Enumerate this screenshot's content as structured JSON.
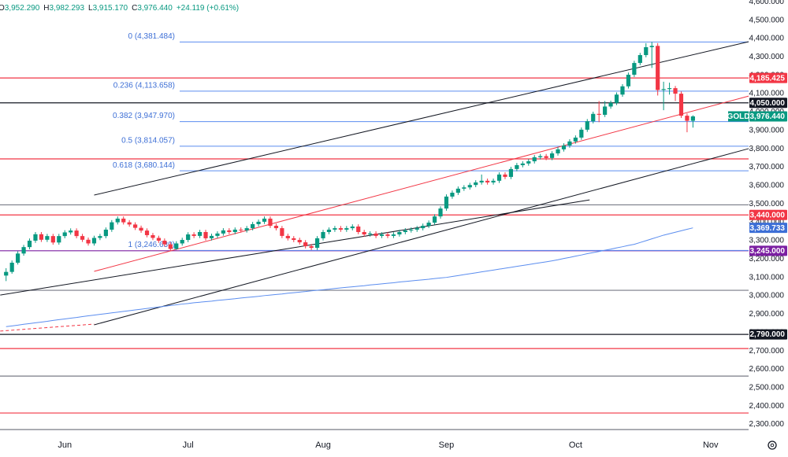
{
  "chart_data": {
    "type": "candlestick",
    "header": [
      {
        "key": "O",
        "text": "3,952.290"
      },
      {
        "key": "H",
        "text": "3,982.293"
      },
      {
        "key": "L",
        "text": "3,915.170"
      },
      {
        "key": "C",
        "text": "3,976.440"
      }
    ],
    "change": "+24.119 (+0.61%)",
    "categories": [
      null,
      null,
      null,
      null,
      null,
      null,
      null,
      null,
      null,
      null,
      "Jun",
      null,
      null,
      null,
      null,
      null,
      null,
      null,
      null,
      null,
      null,
      null,
      null,
      null,
      null,
      null,
      null,
      null,
      null,
      null,
      null,
      "Jul",
      null,
      null,
      null,
      null,
      null,
      null,
      null,
      null,
      null,
      null,
      null,
      null,
      null,
      null,
      null,
      null,
      null,
      null,
      null,
      null,
      null,
      null,
      "Aug",
      null,
      null,
      null,
      null,
      null,
      null,
      null,
      null,
      null,
      null,
      null,
      null,
      null,
      null,
      null,
      null,
      null,
      null,
      null,
      null,
      "Sep",
      null,
      null,
      null,
      null,
      null,
      null,
      null,
      null,
      null,
      null,
      null,
      null,
      null,
      null,
      null,
      null,
      null,
      null,
      null,
      null,
      null,
      "Oct",
      null,
      null,
      null,
      null,
      null,
      null,
      null,
      null,
      null,
      null,
      null,
      null,
      null,
      null,
      null,
      null,
      null,
      null,
      null,
      null,
      null,
      null,
      "Nov",
      null,
      null,
      null,
      null,
      null,
      null
    ],
    "series": [
      {
        "name": "GOLD",
        "up_color": "#089981",
        "down_color": "#f23645",
        "open": [
          3110,
          3130,
          3180,
          3230,
          3265,
          3300,
          3335,
          3305,
          3325,
          3290,
          3325,
          3345,
          3355,
          3325,
          3305,
          3285,
          3315,
          3325,
          3360,
          3400,
          3420,
          3400,
          3388,
          3370,
          3355,
          3330,
          3315,
          3300,
          3280,
          3255,
          3285,
          3304,
          3334,
          3326,
          3347,
          3313,
          3326,
          3339,
          3356,
          3347,
          3360,
          3356,
          3368,
          3390,
          3403,
          3420,
          3381,
          3368,
          3326,
          3313,
          3304,
          3291,
          3270,
          3261,
          3313,
          3347,
          3360,
          3368,
          3360,
          3368,
          3377,
          3347,
          3334,
          3339,
          3326,
          3334,
          3326,
          3334,
          3347,
          3356,
          3360,
          3368,
          3381,
          3398,
          3432,
          3475,
          3540,
          3561,
          3583,
          3590,
          3603,
          3617,
          3626,
          3617,
          3626,
          3660,
          3647,
          3690,
          3711,
          3720,
          3732,
          3754,
          3760,
          3750,
          3775,
          3797,
          3818,
          3840,
          3861,
          3904,
          3950,
          3990,
          3985,
          4030,
          4050,
          4095,
          4140,
          4203,
          4267,
          4310,
          4353,
          4360,
          4120,
          4125,
          4130,
          4100,
          3980,
          3952.29,
          null,
          null,
          null,
          null,
          null,
          null,
          null,
          null,
          null
        ],
        "high": [
          3150,
          3192,
          3242,
          3277,
          3312,
          3347,
          3347,
          3337,
          3337,
          3337,
          3357,
          3367,
          3367,
          3337,
          3317,
          3327,
          3337,
          3372,
          3412,
          3432,
          3432,
          3412,
          3400,
          3382,
          3367,
          3342,
          3327,
          3312,
          3292,
          3297,
          3316,
          3346,
          3346,
          3359,
          3359,
          3338,
          3351,
          3368,
          3368,
          3372,
          3372,
          3380,
          3402,
          3415,
          3432,
          3432,
          3393,
          3380,
          3338,
          3325,
          3316,
          3303,
          3282,
          3325,
          3359,
          3372,
          3380,
          3380,
          3380,
          3389,
          3389,
          3359,
          3351,
          3351,
          3346,
          3346,
          3346,
          3359,
          3368,
          3372,
          3380,
          3393,
          3410,
          3444,
          3487,
          3552,
          3573,
          3595,
          3602,
          3615,
          3629,
          3660,
          3638,
          3638,
          3672,
          3672,
          3702,
          3723,
          3732,
          3744,
          3766,
          3772,
          3772,
          3787,
          3809,
          3830,
          3852,
          3873,
          3916,
          3962,
          4002,
          4060,
          4060,
          4062,
          4107,
          4152,
          4215,
          4279,
          4322,
          4375,
          4381.484,
          4375,
          4165,
          4160,
          4142,
          4112,
          3992,
          3982.293,
          null,
          null,
          null,
          null,
          null,
          null,
          null,
          null,
          null
        ],
        "low": [
          3080,
          3120,
          3170,
          3218,
          3253,
          3288,
          3293,
          3293,
          3278,
          3278,
          3313,
          3333,
          3313,
          3293,
          3273,
          3273,
          3303,
          3313,
          3348,
          3388,
          3388,
          3376,
          3358,
          3343,
          3318,
          3303,
          3288,
          3268,
          3246.63,
          3250,
          3273,
          3292,
          3314,
          3314,
          3301,
          3301,
          3314,
          3327,
          3335,
          3335,
          3344,
          3344,
          3356,
          3378,
          3391,
          3369,
          3356,
          3314,
          3301,
          3292,
          3279,
          3258,
          3249,
          3249,
          3301,
          3335,
          3348,
          3348,
          3348,
          3356,
          3335,
          3322,
          3322,
          3314,
          3314,
          3314,
          3314,
          3322,
          3335,
          3344,
          3348,
          3356,
          3369,
          3386,
          3420,
          3463,
          3528,
          3549,
          3571,
          3578,
          3591,
          3605,
          3605,
          3605,
          3614,
          3635,
          3635,
          3678,
          3699,
          3708,
          3720,
          3742,
          3738,
          3738,
          3763,
          3785,
          3806,
          3828,
          3849,
          3892,
          3938,
          3945,
          3973,
          4018,
          4038,
          4083,
          4128,
          4191,
          4255,
          4298,
          4240,
          4090,
          4010,
          4095,
          4060,
          3968,
          3890,
          3915.17,
          null,
          null,
          null,
          null,
          null,
          null,
          null,
          null,
          null
        ],
        "close": [
          3130,
          3180,
          3230,
          3265,
          3300,
          3335,
          3305,
          3325,
          3290,
          3325,
          3345,
          3355,
          3325,
          3305,
          3285,
          3315,
          3325,
          3360,
          3400,
          3420,
          3400,
          3388,
          3370,
          3355,
          3330,
          3315,
          3300,
          3280,
          3255,
          3285,
          3304,
          3334,
          3326,
          3347,
          3313,
          3326,
          3339,
          3356,
          3347,
          3360,
          3356,
          3368,
          3390,
          3403,
          3420,
          3381,
          3368,
          3326,
          3313,
          3304,
          3291,
          3270,
          3261,
          3313,
          3347,
          3360,
          3368,
          3360,
          3368,
          3377,
          3347,
          3334,
          3339,
          3326,
          3334,
          3326,
          3334,
          3347,
          3356,
          3360,
          3368,
          3381,
          3398,
          3432,
          3475,
          3540,
          3561,
          3583,
          3590,
          3603,
          3617,
          3626,
          3617,
          3626,
          3660,
          3647,
          3690,
          3711,
          3720,
          3732,
          3754,
          3760,
          3750,
          3775,
          3797,
          3818,
          3840,
          3861,
          3904,
          3950,
          3990,
          3985,
          4030,
          4050,
          4095,
          4140,
          4203,
          4267,
          4310,
          4353,
          4360,
          4120,
          4125,
          4130,
          4100,
          3980,
          3952.321,
          3976.44,
          null,
          null,
          null,
          null,
          null,
          null,
          null,
          null,
          null
        ]
      }
    ],
    "last_price": {
      "value": 3976.44,
      "label": "3,976.440",
      "color": "#089981"
    },
    "moving_average": {
      "color": "#5b8def",
      "label_color": "#3d6fd6",
      "last_label": "3,369.733",
      "values": [
        2832,
        2836,
        2840,
        2845,
        2849,
        2853,
        2857,
        2861,
        2866,
        2870,
        2874,
        2878,
        2882,
        2887,
        2891,
        2895,
        2899,
        2903,
        2907,
        2911,
        2915,
        2919,
        2923,
        2927,
        2931,
        2935,
        2939,
        2943,
        2947,
        2951,
        2955,
        2958,
        2962,
        2965,
        2968,
        2971,
        2975,
        2978,
        2981,
        2984,
        2988,
        2991,
        2994,
        2997,
        3001,
        3004,
        3007,
        3010,
        3014,
        3017,
        3020,
        3023,
        3027,
        3030,
        3033,
        3036,
        3040,
        3043,
        3046,
        3049,
        3052,
        3055,
        3059,
        3062,
        3065,
        3068,
        3071,
        3075,
        3078,
        3081,
        3084,
        3087,
        3090,
        3094,
        3097,
        3100,
        3105,
        3110,
        3115,
        3120,
        3125,
        3130,
        3135,
        3140,
        3145,
        3150,
        3155,
        3160,
        3165,
        3170,
        3175,
        3180,
        3185,
        3190,
        3196,
        3203,
        3209,
        3216,
        3222,
        3229,
        3235,
        3241,
        3248,
        3254,
        3261,
        3267,
        3274,
        3280,
        3290,
        3300,
        3310,
        3320,
        3330,
        3338,
        3346,
        3354,
        3362,
        3369.733,
        null,
        null,
        null,
        null,
        null,
        null,
        null,
        null,
        null
      ]
    },
    "ylim": [
      2242.5,
      4609.8
    ],
    "yticks": [
      {
        "value": 2300,
        "label": "2,300.000"
      },
      {
        "value": 2400,
        "label": "2,400.000"
      },
      {
        "value": 2500,
        "label": "2,500.000"
      },
      {
        "value": 2600,
        "label": "2,600.000"
      },
      {
        "value": 2700,
        "label": "2,700.000"
      },
      {
        "value": 2800,
        "label": "2,800.000"
      },
      {
        "value": 2900,
        "label": "2,900.000"
      },
      {
        "value": 3000,
        "label": "3,000.000"
      },
      {
        "value": 3100,
        "label": "3,100.000"
      },
      {
        "value": 3200,
        "label": "3,200.000"
      },
      {
        "value": 3300,
        "label": "3,300.000"
      },
      {
        "value": 3400,
        "label": "3,400.000"
      },
      {
        "value": 3500,
        "label": "3,500.000"
      },
      {
        "value": 3600,
        "label": "3,600.000"
      },
      {
        "value": 3700,
        "label": "3,700.000"
      },
      {
        "value": 3800,
        "label": "3,800.000"
      },
      {
        "value": 3900,
        "label": "3,900.000"
      },
      {
        "value": 4000,
        "label": "4,000.000"
      },
      {
        "value": 4100,
        "label": "4,100.000"
      },
      {
        "value": 4200,
        "label": "4,200.000"
      },
      {
        "value": 4300,
        "label": "4,300.000"
      },
      {
        "value": 4400,
        "label": "4,400.000"
      },
      {
        "value": 4500,
        "label": "4,500.000"
      },
      {
        "value": 4600,
        "label": "4,600.000"
      }
    ],
    "grid": false,
    "levels": [
      {
        "value": 4185.425,
        "label": "4,185.425",
        "color": "#f23645"
      },
      {
        "value": 4050,
        "label": "4,050.000",
        "color": "#131722"
      },
      {
        "value": 3745,
        "color": "#f23645"
      },
      {
        "value": 3495,
        "color": "#787b86"
      },
      {
        "value": 3440,
        "label": "3,440.000",
        "color": "#f23645"
      },
      {
        "value": 3245,
        "label": "3,245.000",
        "color": "#7b1fa2"
      },
      {
        "value": 3030,
        "color": "#787b86"
      },
      {
        "value": 2790,
        "label": "2,790.000",
        "color": "#131722"
      },
      {
        "value": 2713,
        "color": "#f23645"
      },
      {
        "value": 2563,
        "color": "#787b86"
      },
      {
        "value": 2362,
        "color": "#f23645"
      },
      {
        "value": 2272,
        "color": "#787b86"
      }
    ],
    "fibonacci": {
      "color": "#5b8def",
      "levels": [
        {
          "value": 4381.484,
          "label": "0 (4,381.484)"
        },
        {
          "value": 4113.658,
          "label": "0.236 (4,113.658)"
        },
        {
          "value": 3947.97,
          "label": "0.382 (3,947.970)"
        },
        {
          "value": 3814.057,
          "label": "0.5 (3,814.057)"
        },
        {
          "value": 3680.144,
          "label": "0.618 (3,680.144)"
        },
        {
          "value": 3246.63,
          "label": "1 (3,246.630)"
        }
      ]
    },
    "trendlines": [
      {
        "color": "#131722",
        "x": [
          15,
          126.5
        ],
        "y": [
          3548,
          4383
        ]
      },
      {
        "color": "#f23645",
        "x": [
          15,
          126.5
        ],
        "y": [
          3133,
          4087
        ]
      },
      {
        "color": "#131722",
        "x": [
          15,
          126.5
        ],
        "y": [
          2842,
          3801
        ]
      },
      {
        "color": "#131722",
        "x": [
          -1,
          99.4
        ],
        "y": [
          3004,
          3522
        ]
      },
      {
        "color": "#f23645",
        "dashed": true,
        "x": [
          -1,
          15
        ],
        "y": [
          2808,
          2846
        ]
      }
    ]
  }
}
